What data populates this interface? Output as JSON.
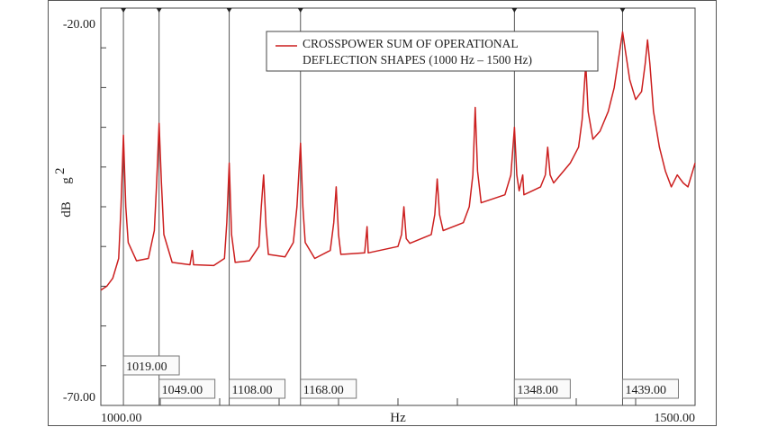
{
  "chart_data": {
    "type": "line",
    "title": "",
    "legend": {
      "entries": [
        {
          "line1": "CROSSPOWER SUM OF OPERATIONAL",
          "line2": "DEFLECTION SHAPES (1000 Hz – 1500 Hz)"
        }
      ],
      "placement": "top-right"
    },
    "xlabel": "Hz",
    "ylabel_unit": "dB",
    "ylabel_quantity": "g",
    "ylabel_superscript": "2",
    "xlim": [
      1000,
      1500
    ],
    "ylim": [
      -70,
      -20
    ],
    "x_tick_labels": [
      {
        "value": 1000,
        "text": "1000.00"
      },
      {
        "value": 1500,
        "text": "1500.00"
      }
    ],
    "y_tick_labels": [
      {
        "value": -20,
        "text": "-20.00"
      },
      {
        "value": -70,
        "text": "-70.00"
      }
    ],
    "cursors": [
      {
        "x": 1019,
        "text": "1019.00",
        "row": 1
      },
      {
        "x": 1049,
        "text": "1049.00",
        "row": 2
      },
      {
        "x": 1108,
        "text": "1108.00",
        "row": 2
      },
      {
        "x": 1168,
        "text": "1168.00",
        "row": 2
      },
      {
        "x": 1348,
        "text": "1348.00",
        "row": 2
      },
      {
        "x": 1439,
        "text": "1439.00",
        "row": 2
      }
    ],
    "series": [
      {
        "color": "#cc1f1f",
        "points": [
          [
            1000,
            -55.5
          ],
          [
            1005,
            -55.0
          ],
          [
            1010,
            -54.0
          ],
          [
            1015,
            -51.5
          ],
          [
            1017,
            -45.0
          ],
          [
            1019,
            -36.0
          ],
          [
            1021,
            -45.0
          ],
          [
            1023,
            -49.5
          ],
          [
            1030,
            -51.8
          ],
          [
            1040,
            -51.5
          ],
          [
            1045,
            -48.0
          ],
          [
            1047,
            -42.0
          ],
          [
            1049,
            -34.5
          ],
          [
            1051,
            -42.0
          ],
          [
            1053,
            -48.5
          ],
          [
            1060,
            -52.0
          ],
          [
            1075,
            -52.3
          ],
          [
            1077,
            -50.5
          ],
          [
            1078,
            -52.3
          ],
          [
            1095,
            -52.4
          ],
          [
            1104,
            -51.5
          ],
          [
            1106,
            -47.0
          ],
          [
            1108,
            -39.5
          ],
          [
            1110,
            -48.5
          ],
          [
            1113,
            -52.0
          ],
          [
            1125,
            -51.8
          ],
          [
            1133,
            -50.0
          ],
          [
            1135,
            -45.0
          ],
          [
            1137,
            -41.0
          ],
          [
            1139,
            -47.5
          ],
          [
            1141,
            -51.0
          ],
          [
            1155,
            -51.3
          ],
          [
            1162,
            -49.5
          ],
          [
            1165,
            -45.0
          ],
          [
            1168,
            -37.0
          ],
          [
            1170,
            -45.0
          ],
          [
            1172,
            -49.5
          ],
          [
            1180,
            -51.5
          ],
          [
            1193,
            -50.5
          ],
          [
            1196,
            -47.0
          ],
          [
            1198,
            -42.5
          ],
          [
            1200,
            -48.5
          ],
          [
            1202,
            -51.0
          ],
          [
            1222,
            -50.8
          ],
          [
            1224,
            -47.5
          ],
          [
            1225,
            -50.8
          ],
          [
            1250,
            -50.0
          ],
          [
            1253,
            -48.5
          ],
          [
            1255,
            -45.0
          ],
          [
            1257,
            -49.0
          ],
          [
            1260,
            -49.6
          ],
          [
            1278,
            -48.5
          ],
          [
            1281,
            -46.0
          ],
          [
            1283,
            -41.5
          ],
          [
            1285,
            -46.0
          ],
          [
            1288,
            -48.0
          ],
          [
            1305,
            -47.0
          ],
          [
            1310,
            -45.0
          ],
          [
            1313,
            -41.0
          ],
          [
            1315,
            -32.5
          ],
          [
            1317,
            -40.5
          ],
          [
            1320,
            -44.5
          ],
          [
            1340,
            -43.5
          ],
          [
            1345,
            -41.0
          ],
          [
            1348,
            -35.0
          ],
          [
            1350,
            -41.0
          ],
          [
            1352,
            -43.0
          ],
          [
            1355,
            -41.0
          ],
          [
            1356,
            -43.5
          ],
          [
            1370,
            -42.5
          ],
          [
            1374,
            -41.0
          ],
          [
            1376,
            -37.5
          ],
          [
            1378,
            -41.0
          ],
          [
            1381,
            -42.0
          ],
          [
            1395,
            -39.5
          ],
          [
            1402,
            -37.5
          ],
          [
            1405,
            -34.0
          ],
          [
            1408,
            -27.0
          ],
          [
            1410,
            -33.0
          ],
          [
            1414,
            -36.5
          ],
          [
            1420,
            -35.5
          ],
          [
            1427,
            -33.0
          ],
          [
            1432,
            -30.0
          ],
          [
            1436,
            -26.0
          ],
          [
            1439,
            -23.0
          ],
          [
            1442,
            -26.0
          ],
          [
            1445,
            -29.0
          ],
          [
            1450,
            -31.5
          ],
          [
            1455,
            -30.5
          ],
          [
            1458,
            -27.0
          ],
          [
            1460,
            -24.0
          ],
          [
            1462,
            -27.0
          ],
          [
            1465,
            -33.0
          ],
          [
            1470,
            -37.5
          ],
          [
            1475,
            -40.5
          ],
          [
            1480,
            -42.5
          ],
          [
            1485,
            -41.0
          ],
          [
            1490,
            -42.0
          ],
          [
            1494,
            -42.5
          ],
          [
            1498,
            -40.5
          ],
          [
            1500,
            -39.5
          ]
        ]
      }
    ]
  }
}
